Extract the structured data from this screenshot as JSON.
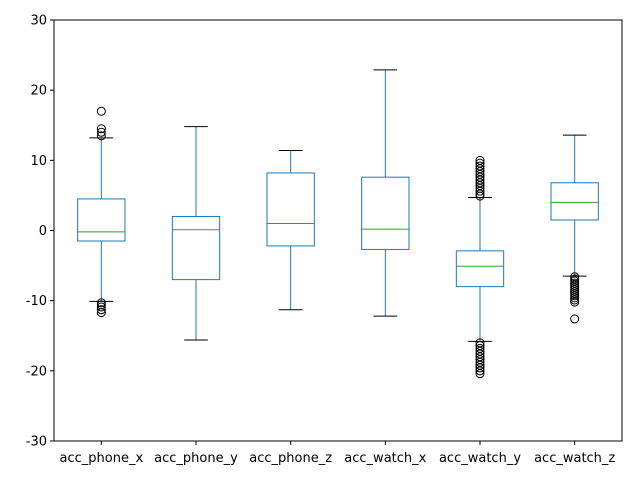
{
  "chart_data": {
    "type": "boxplot",
    "title": "",
    "xlabel": "",
    "ylabel": "",
    "ylim": [
      -30,
      30
    ],
    "yticks": [
      -30,
      -20,
      -10,
      0,
      10,
      20,
      30
    ],
    "grid": false,
    "categories": [
      "acc_phone_x",
      "acc_phone_y",
      "acc_phone_z",
      "acc_watch_x",
      "acc_watch_y",
      "acc_watch_z"
    ],
    "boxes": [
      {
        "name": "acc_phone_x",
        "whislo": -10.1,
        "q1": -1.5,
        "med": -0.2,
        "q3": 4.5,
        "whishi": 13.2,
        "fliers": [
          17.0,
          14.5,
          14.0,
          13.5,
          -10.3,
          -10.6,
          -10.9,
          -11.3,
          -11.7
        ]
      },
      {
        "name": "acc_phone_y",
        "whislo": -15.6,
        "q1": -7.0,
        "med": 0.1,
        "q3": 2.0,
        "whishi": 14.8,
        "fliers": []
      },
      {
        "name": "acc_phone_z",
        "whislo": -11.3,
        "q1": -2.2,
        "med": 1.0,
        "q3": 8.2,
        "whishi": 11.4,
        "fliers": []
      },
      {
        "name": "acc_watch_x",
        "whislo": -12.2,
        "q1": -2.7,
        "med": 0.2,
        "q3": 7.6,
        "whishi": 22.9,
        "fliers": []
      },
      {
        "name": "acc_watch_y",
        "whislo": -15.8,
        "q1": -8.0,
        "med": -5.1,
        "q3": -2.9,
        "whishi": 4.7,
        "fliers": [
          10.0,
          9.6,
          9.2,
          8.8,
          8.4,
          8.0,
          7.6,
          7.2,
          6.8,
          6.4,
          6.0,
          5.6,
          5.2,
          4.9,
          -16.0,
          -16.4,
          -16.8,
          -17.2,
          -17.6,
          -18.0,
          -18.4,
          -18.8,
          -19.2,
          -19.6,
          -20.0,
          -20.4
        ]
      },
      {
        "name": "acc_watch_z",
        "whislo": -6.5,
        "q1": 1.5,
        "med": 4.0,
        "q3": 6.8,
        "whishi": 13.6,
        "fliers": [
          -6.6,
          -6.9,
          -7.2,
          -7.5,
          -7.8,
          -8.1,
          -8.4,
          -8.7,
          -9.0,
          -9.3,
          -9.6,
          -9.9,
          -10.2,
          -12.6
        ]
      }
    ]
  }
}
